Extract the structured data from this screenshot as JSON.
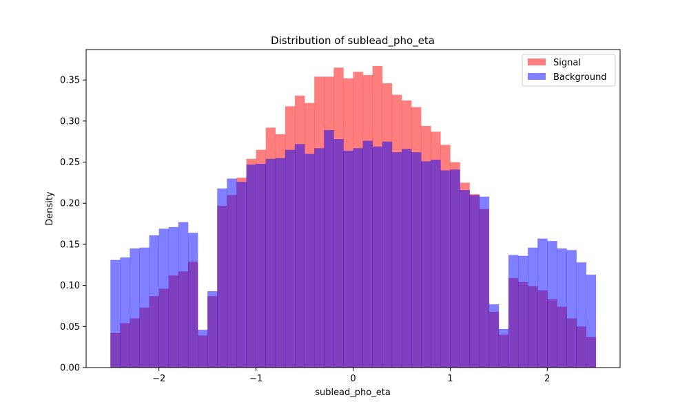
{
  "chart_data": {
    "type": "histogram",
    "title": "Distribution of sublead_pho_eta",
    "xlabel": "sublead_pho_eta",
    "ylabel": "Density",
    "xlim": [
      -2.75,
      2.75
    ],
    "ylim": [
      0.0,
      0.387
    ],
    "x_ticks": [
      -2,
      -1,
      0,
      1,
      2
    ],
    "x_tick_labels": [
      "−2",
      "−1",
      "0",
      "1",
      "2"
    ],
    "y_ticks": [
      0.0,
      0.05,
      0.1,
      0.15,
      0.2,
      0.25,
      0.3,
      0.35
    ],
    "y_tick_labels": [
      "0.00",
      "0.05",
      "0.10",
      "0.15",
      "0.20",
      "0.25",
      "0.30",
      "0.35"
    ],
    "bin_range": [
      -2.5,
      2.5
    ],
    "bins": 50,
    "legend_position": "top-right",
    "series": [
      {
        "name": "Signal",
        "color": "#ff0000",
        "alpha": 0.5,
        "values": [
          0.042,
          0.054,
          0.06,
          0.073,
          0.087,
          0.096,
          0.112,
          0.117,
          0.129,
          0.039,
          0.087,
          0.197,
          0.21,
          0.231,
          0.254,
          0.265,
          0.292,
          0.284,
          0.318,
          0.331,
          0.322,
          0.354,
          0.354,
          0.365,
          0.352,
          0.36,
          0.356,
          0.367,
          0.346,
          0.332,
          0.325,
          0.317,
          0.294,
          0.287,
          0.271,
          0.25,
          0.225,
          0.211,
          0.193,
          0.068,
          0.04,
          0.109,
          0.104,
          0.099,
          0.094,
          0.083,
          0.074,
          0.06,
          0.05,
          0.037
        ]
      },
      {
        "name": "Background",
        "color": "#0000ff",
        "alpha": 0.5,
        "values": [
          0.131,
          0.134,
          0.145,
          0.146,
          0.161,
          0.169,
          0.171,
          0.177,
          0.164,
          0.046,
          0.093,
          0.218,
          0.23,
          0.226,
          0.247,
          0.248,
          0.254,
          0.255,
          0.265,
          0.272,
          0.26,
          0.267,
          0.289,
          0.278,
          0.264,
          0.267,
          0.276,
          0.269,
          0.275,
          0.262,
          0.266,
          0.262,
          0.251,
          0.253,
          0.24,
          0.241,
          0.216,
          0.21,
          0.208,
          0.077,
          0.047,
          0.137,
          0.136,
          0.146,
          0.157,
          0.154,
          0.145,
          0.143,
          0.128,
          0.113
        ]
      }
    ]
  }
}
